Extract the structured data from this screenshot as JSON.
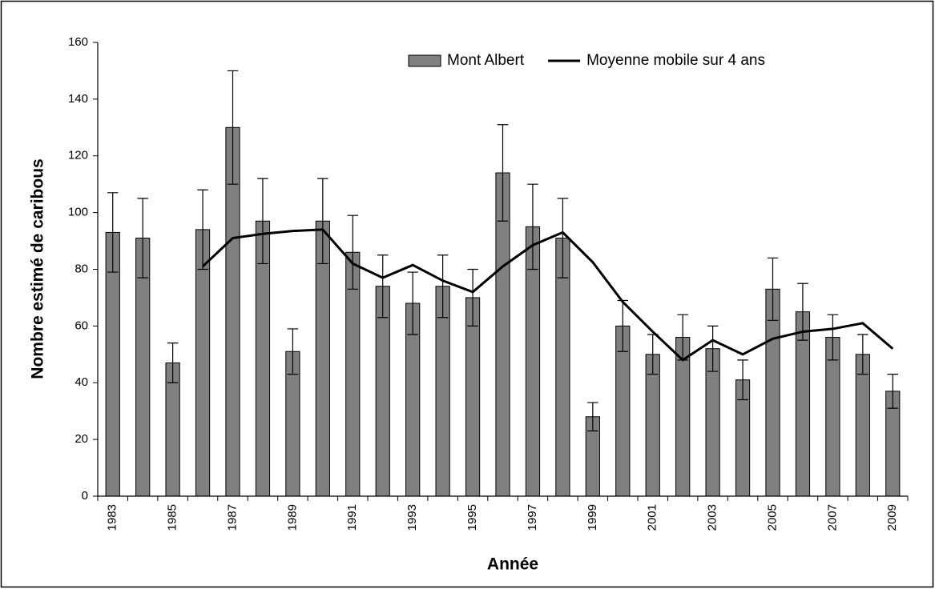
{
  "chart_data": {
    "type": "bar",
    "x_label": "Année",
    "y_label": "Nombre estimé de caribous",
    "categories": [
      "1983",
      null,
      "1985",
      null,
      "1987",
      null,
      "1989",
      null,
      "1991",
      null,
      "1993",
      null,
      "1995",
      null,
      "1997",
      null,
      "1999",
      null,
      "2001",
      null,
      "2003",
      null,
      "2005",
      null,
      "2007",
      null,
      "2009"
    ],
    "series": [
      {
        "name": "Mont Albert",
        "type": "bar",
        "color": "#808080",
        "values": [
          93,
          91,
          47,
          94,
          130,
          97,
          51,
          97,
          86,
          74,
          68,
          74,
          70,
          114,
          95,
          91,
          28,
          60,
          50,
          56,
          52,
          41,
          73,
          65,
          56,
          50,
          37
        ],
        "errors": [
          14,
          14,
          7,
          14,
          20,
          15,
          8,
          15,
          13,
          11,
          11,
          11,
          10,
          17,
          15,
          14,
          5,
          9,
          7,
          8,
          8,
          7,
          11,
          10,
          8,
          7,
          6
        ]
      },
      {
        "name": "Moyenne mobile sur 4 ans",
        "type": "line",
        "color": "#000000",
        "values": [
          null,
          null,
          null,
          81,
          91,
          92.5,
          93.5,
          94,
          82,
          77,
          81.5,
          76,
          72,
          81,
          88.5,
          93,
          82.5,
          68.5,
          58,
          48,
          55,
          50,
          55.5,
          58,
          59,
          61,
          52
        ]
      }
    ],
    "ylim": [
      0,
      160
    ],
    "yticks": [
      0,
      20,
      40,
      60,
      80,
      100,
      120,
      140,
      160
    ],
    "grid": false,
    "legend": "top"
  }
}
